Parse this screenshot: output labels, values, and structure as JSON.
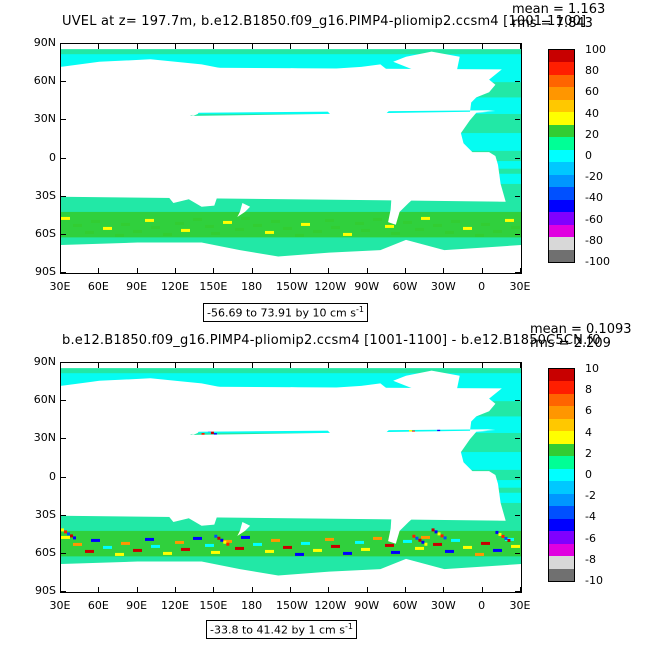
{
  "panels": [
    {
      "title": "UVEL at z= 197.7m, b.e12.B1850.f09_g16.PIMP4-pliomip2.ccsm4 [1001-1100]",
      "mean_text": "mean = 1.163",
      "rms_text": "rms = 7.843",
      "range_text": "-56.69 to 73.91 by 10 cm s",
      "range_unit_sup": "-1",
      "colorbar": {
        "labels": [
          "100",
          "80",
          "60",
          "40",
          "20",
          "0",
          "-20",
          "-40",
          "-60",
          "-80",
          "-100"
        ]
      }
    },
    {
      "title": "b.e12.B1850.f09_g16.PIMP4-pliomip2.ccsm4 [1001-1100] - b.e12.B1850C5CN.f0",
      "mean_text": "mean = 0.1093",
      "rms_text": "rms = 2.209",
      "range_text": "-33.8 to 41.42 by 1 cm s",
      "range_unit_sup": "-1",
      "colorbar": {
        "labels": [
          "10",
          "8",
          "6",
          "4",
          "2",
          "0",
          "-2",
          "-4",
          "-6",
          "-8",
          "-10"
        ]
      }
    }
  ],
  "axes": {
    "lat_ticks": [
      "90N",
      "60N",
      "30N",
      "0",
      "30S",
      "60S",
      "90S"
    ],
    "lon_ticks": [
      "30E",
      "60E",
      "90E",
      "120E",
      "150E",
      "180",
      "150W",
      "120W",
      "90W",
      "60W",
      "30W",
      "0",
      "30E"
    ]
  },
  "colors": {
    "land": "#ffffff",
    "ocean_base": "#22e8a6",
    "cyan": "#00ffff",
    "colorbar_swatches": [
      "#c80000",
      "#ff1e00",
      "#ff6400",
      "#ff9600",
      "#ffc800",
      "#ffff00",
      "#32cd32",
      "#00ff96",
      "#00ffff",
      "#00c8ff",
      "#0096ff",
      "#0050ff",
      "#0000ff",
      "#8000ff",
      "#e000e0",
      "#d8d8d8",
      "#707070"
    ]
  }
}
